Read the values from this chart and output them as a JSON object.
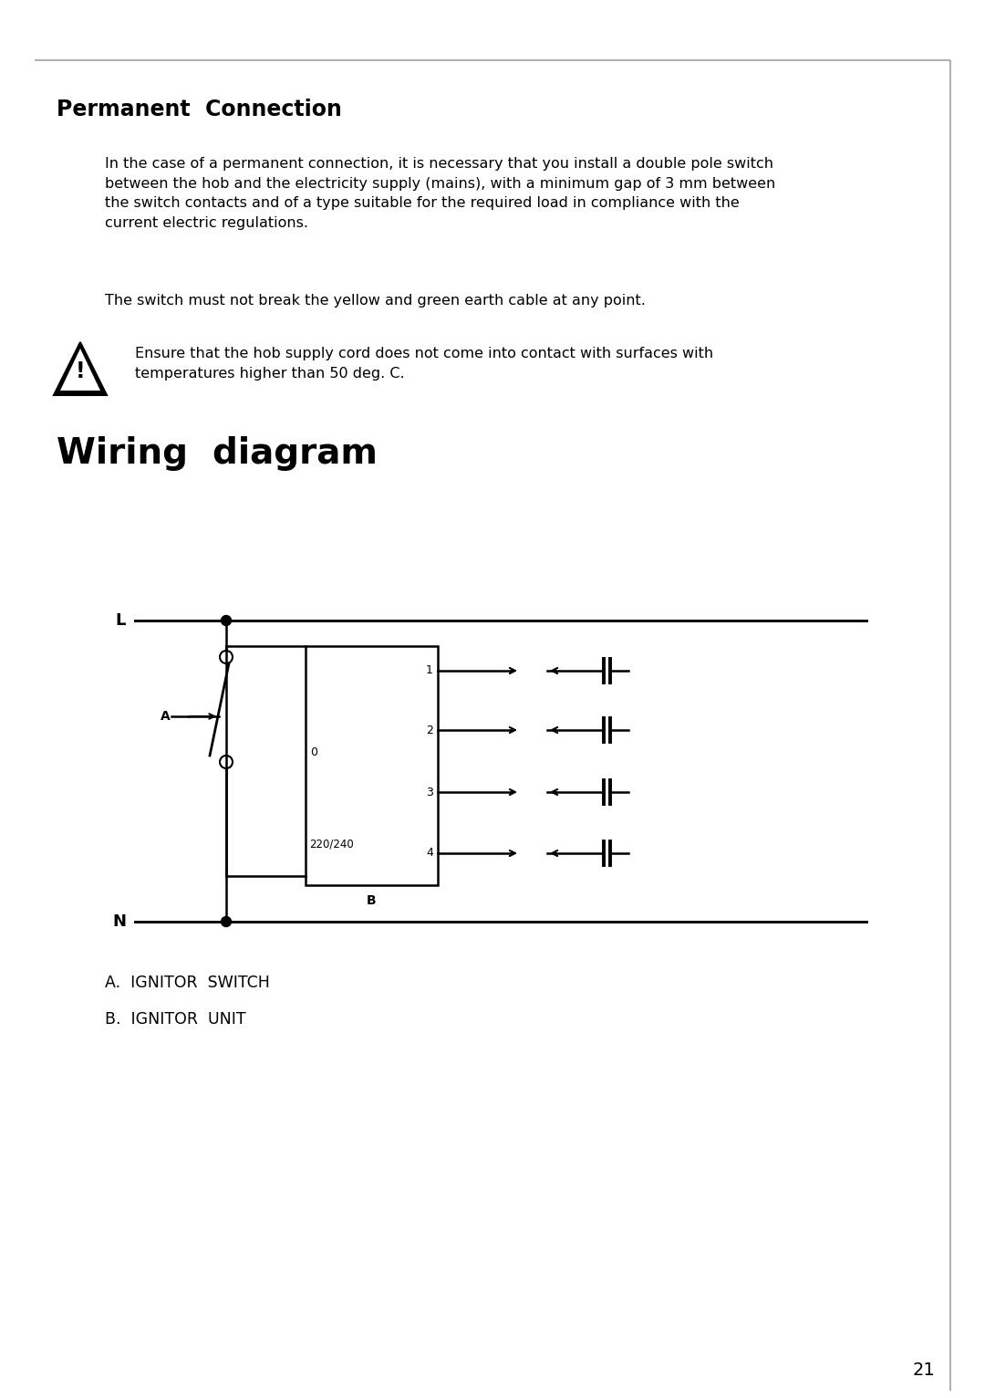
{
  "bg_color": "#ffffff",
  "text_color": "#000000",
  "section_title": "Permanent  Connection",
  "para1": "In the case of a permanent connection, it is necessary that you install a double pole switch\nbetween the hob and the electricity supply (mains), with a minimum gap of 3 mm between\nthe switch contacts and of a type suitable for the required load in compliance with the\ncurrent electric regulations.",
  "para2": "The switch must not break the yellow and green earth cable at any point.",
  "warning_text": "Ensure that the hob supply cord does not come into contact with surfaces with\ntemperatures higher than 50 deg. C.",
  "wiring_title": "Wiring  diagram",
  "legend_a": "A.  IGNITOR  SWITCH",
  "legend_b": "B.  IGNITOR  UNIT",
  "page_number": "21",
  "border_gray": "#999999"
}
